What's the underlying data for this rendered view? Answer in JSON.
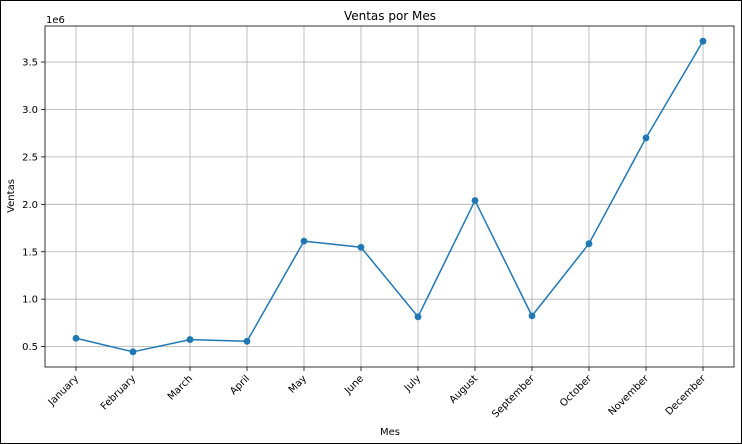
{
  "chart_data": {
    "type": "line",
    "title": "Ventas por Mes",
    "xlabel": "Mes",
    "ylabel": "Ventas",
    "y_scale_label": "1e6",
    "categories": [
      "January",
      "February",
      "March",
      "April",
      "May",
      "June",
      "July",
      "August",
      "September",
      "October",
      "November",
      "December"
    ],
    "series": [
      {
        "values": [
          588000,
          445000,
          574000,
          556000,
          1612000,
          1547000,
          814000,
          2040000,
          824000,
          1585000,
          2700000,
          3720000
        ]
      }
    ],
    "y_ticks": [
      0.5,
      1.0,
      1.5,
      2.0,
      2.5,
      3.0,
      3.5
    ],
    "y_tick_labels": [
      "0.5",
      "1.0",
      "1.5",
      "2.0",
      "2.5",
      "3.0",
      "3.5"
    ],
    "ylim": [
      0.285,
      3.88
    ],
    "grid": true,
    "marker": "circle",
    "colors": {
      "series": "#1f77b4",
      "grid": "#b0b0b0",
      "axis": "#000000",
      "frame": "#000000"
    }
  }
}
